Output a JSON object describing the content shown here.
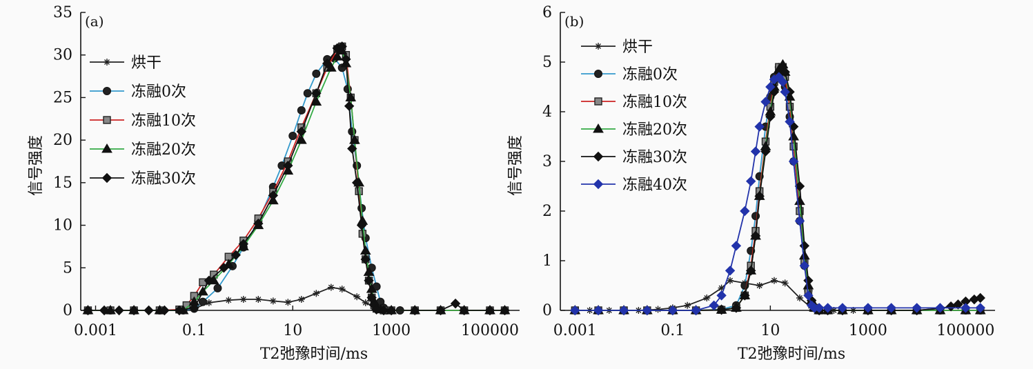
{
  "chart_data": [
    {
      "type": "line",
      "panel_label": "(a)",
      "xlabel": "T2弛豫时间/ms",
      "ylabel": "信号强度",
      "xscale": "log",
      "xlim": [
        0.0005,
        400000
      ],
      "ylim": [
        0,
        35
      ],
      "x_ticks": [
        0.001,
        0.1,
        10,
        1000,
        100000
      ],
      "x_tick_labels": [
        "0.001",
        "0.1",
        "10",
        "1000",
        "100000"
      ],
      "y_ticks": [
        0,
        5,
        10,
        15,
        20,
        25,
        30,
        35
      ],
      "y_tick_labels": [
        "0",
        "5",
        "10",
        "15",
        "20",
        "25",
        "30",
        "35"
      ],
      "legend_position": "top-left",
      "series": [
        {
          "name": "烘干",
          "color": "#222222",
          "marker": "star",
          "x": [
            0.0007,
            0.0015,
            0.003,
            0.006,
            0.012,
            0.025,
            0.05,
            0.1,
            0.2,
            0.5,
            1,
            2,
            4,
            8,
            15,
            30,
            60,
            100,
            200,
            300,
            500,
            700,
            1000,
            3000,
            10000,
            30000,
            100000,
            200000
          ],
          "y": [
            0,
            0,
            0,
            0,
            0,
            0,
            0.05,
            0.2,
            0.9,
            1.2,
            1.3,
            1.3,
            1.1,
            0.95,
            1.3,
            2.0,
            2.7,
            2.5,
            1.6,
            0.9,
            0.3,
            0.1,
            0,
            0,
            0,
            0,
            0,
            0
          ]
        },
        {
          "name": "冻融0次",
          "color": "#3399cc",
          "marker": "circle",
          "x": [
            0.0007,
            0.002,
            0.006,
            0.02,
            0.06,
            0.1,
            0.15,
            0.3,
            0.6,
            1,
            2,
            4,
            6,
            10,
            15,
            20,
            30,
            50,
            70,
            100,
            130,
            160,
            200,
            250,
            300,
            400,
            500,
            600,
            700,
            800,
            1000,
            1500,
            3000,
            10000,
            30000,
            100000,
            200000
          ],
          "y": [
            0,
            0,
            0,
            0,
            0,
            0.2,
            1.0,
            2.6,
            5.2,
            7.4,
            10.5,
            14.5,
            17.0,
            20.5,
            23.5,
            25.5,
            27.8,
            29.5,
            29.6,
            28.5,
            26.0,
            21.0,
            17.0,
            12.0,
            8.5,
            5.0,
            2.8,
            1.0,
            0.3,
            0,
            0,
            0,
            0,
            0,
            0,
            0,
            0
          ]
        },
        {
          "name": "冻融10次",
          "color": "#cc2222",
          "marker": "square",
          "x": [
            0.0007,
            0.002,
            0.006,
            0.02,
            0.05,
            0.07,
            0.1,
            0.15,
            0.25,
            0.5,
            1,
            2,
            4,
            8,
            15,
            30,
            50,
            80,
            100,
            120,
            150,
            180,
            220,
            260,
            300,
            350,
            400,
            450,
            500,
            700,
            1000,
            3000,
            10000,
            30000,
            100000,
            200000
          ],
          "y": [
            0,
            0,
            0,
            0,
            0.1,
            0.6,
            1.7,
            3.3,
            4.2,
            6.3,
            8.2,
            10.8,
            13.9,
            17.5,
            21.5,
            25.5,
            28.5,
            30.7,
            31.0,
            30.0,
            25.0,
            20.0,
            14.0,
            9.0,
            6.0,
            3.5,
            1.5,
            0.6,
            0.2,
            0,
            0,
            0,
            0,
            0,
            0,
            0
          ]
        },
        {
          "name": "冻融20次",
          "color": "#33aa44",
          "marker": "triangle",
          "x": [
            0.0007,
            0.002,
            0.006,
            0.02,
            0.06,
            0.1,
            0.15,
            0.25,
            0.5,
            1,
            2,
            4,
            8,
            15,
            30,
            60,
            80,
            100,
            120,
            150,
            180,
            220,
            260,
            300,
            350,
            400,
            450,
            500,
            600,
            1000,
            3000,
            10000,
            30000,
            100000,
            200000
          ],
          "y": [
            0,
            0,
            0,
            0,
            0,
            1.0,
            2.2,
            3.5,
            5.4,
            7.5,
            10.0,
            12.9,
            16.4,
            20.0,
            24.5,
            28.5,
            29.8,
            30.5,
            29.0,
            25.0,
            20.0,
            15.0,
            10.5,
            7.0,
            4.5,
            2.5,
            1.0,
            0.4,
            0.1,
            0,
            0,
            0,
            0,
            0,
            0
          ]
        },
        {
          "name": "冻融30次",
          "color": "#111111",
          "marker": "diamond",
          "x": [
            0.0007,
            0.0015,
            0.003,
            0.006,
            0.012,
            0.025,
            0.05,
            0.1,
            0.2,
            0.4,
            0.7,
            1,
            2,
            4,
            8,
            15,
            30,
            50,
            80,
            100,
            120,
            140,
            160,
            200,
            250,
            300,
            350,
            400,
            450,
            500,
            700,
            1000,
            3000,
            10000,
            20000,
            30000,
            100000,
            200000
          ],
          "y": [
            0,
            0,
            0,
            0,
            0,
            0,
            0,
            0.3,
            3.5,
            5.0,
            6.5,
            7.8,
            10.2,
            13.5,
            17.0,
            21.0,
            25.5,
            29.0,
            30.8,
            31.0,
            29.5,
            24.0,
            19.0,
            15.0,
            10.0,
            6.0,
            3.5,
            1.5,
            0.6,
            0.1,
            0,
            0,
            0,
            0,
            0.8,
            0,
            0,
            0
          ]
        }
      ]
    },
    {
      "type": "line",
      "panel_label": "(b)",
      "xlabel": "T2弛豫时间/ms",
      "ylabel": "信号强度",
      "xscale": "log",
      "xlim": [
        0.0005,
        400000
      ],
      "ylim": [
        0,
        6
      ],
      "x_ticks": [
        0.001,
        0.1,
        10,
        1000,
        100000
      ],
      "x_tick_labels": [
        "0.001",
        "0.1",
        "10",
        "1000",
        "100000"
      ],
      "y_ticks": [
        0,
        1,
        2,
        3,
        4,
        5,
        6
      ],
      "y_tick_labels": [
        "0",
        "1",
        "2",
        "3",
        "4",
        "5",
        "6"
      ],
      "legend_position": "top-left",
      "series": [
        {
          "name": "烘干",
          "color": "#222222",
          "marker": "star",
          "x": [
            0.001,
            0.002,
            0.005,
            0.01,
            0.02,
            0.05,
            0.1,
            0.2,
            0.5,
            1,
            1.5,
            3,
            6,
            12,
            20,
            40,
            70,
            100,
            200,
            500,
            1000,
            3000,
            10000,
            30000,
            50000,
            70000,
            100000,
            150000,
            200000
          ],
          "y": [
            0,
            0,
            0,
            0,
            0,
            0.02,
            0.05,
            0.1,
            0.25,
            0.45,
            0.6,
            0.55,
            0.5,
            0.6,
            0.55,
            0.25,
            0.05,
            0,
            0,
            0,
            0,
            0,
            0,
            0.04,
            0.08,
            0.12,
            0.18,
            0.22,
            0.25
          ]
        },
        {
          "name": "冻融0次",
          "color": "#3399cc",
          "marker": "circle",
          "x": [
            0.001,
            0.003,
            0.01,
            0.03,
            0.1,
            0.3,
            1,
            2,
            3,
            4,
            5,
            6,
            8,
            10,
            12,
            15,
            18,
            20,
            25,
            30,
            40,
            50,
            60,
            70,
            80,
            100,
            150,
            300,
            1000,
            3000,
            10000,
            30000,
            100000,
            200000
          ],
          "y": [
            0,
            0,
            0,
            0,
            0,
            0,
            0.02,
            0.1,
            0.5,
            1.2,
            1.9,
            2.7,
            3.7,
            4.3,
            4.7,
            4.9,
            4.85,
            4.5,
            3.9,
            3.0,
            1.8,
            0.9,
            0.4,
            0.15,
            0.05,
            0,
            0,
            0,
            0,
            0,
            0,
            0,
            0,
            0
          ]
        },
        {
          "name": "冻融10次",
          "color": "#cc2222",
          "marker": "square",
          "x": [
            0.001,
            0.003,
            0.01,
            0.03,
            0.1,
            0.3,
            1,
            2,
            3,
            4,
            5,
            6,
            8,
            10,
            12,
            15,
            18,
            20,
            25,
            30,
            40,
            50,
            60,
            70,
            80,
            100,
            150,
            300,
            1000,
            3000,
            10000,
            30000,
            100000,
            200000
          ],
          "y": [
            0,
            0,
            0,
            0,
            0,
            0,
            0.01,
            0.05,
            0.3,
            0.9,
            1.6,
            2.4,
            3.4,
            4.1,
            4.6,
            4.9,
            4.9,
            4.7,
            4.1,
            3.3,
            2.0,
            1.0,
            0.4,
            0.15,
            0.05,
            0,
            0,
            0,
            0,
            0,
            0,
            0,
            0,
            0
          ]
        },
        {
          "name": "冻融20次",
          "color": "#33aa44",
          "marker": "triangle",
          "x": [
            0.001,
            0.003,
            0.01,
            0.03,
            0.1,
            0.3,
            1,
            2,
            3,
            4,
            5,
            6,
            8,
            10,
            12,
            15,
            18,
            20,
            25,
            30,
            40,
            50,
            60,
            70,
            80,
            100,
            150,
            300,
            1000,
            3000,
            10000,
            30000,
            100000,
            200000
          ],
          "y": [
            0,
            0,
            0,
            0,
            0,
            0,
            0.01,
            0.05,
            0.3,
            0.8,
            1.5,
            2.3,
            3.3,
            4.0,
            4.5,
            4.85,
            4.95,
            4.8,
            4.3,
            3.5,
            2.2,
            1.1,
            0.5,
            0.2,
            0.05,
            0,
            0,
            0,
            0,
            0,
            0,
            0,
            0,
            0
          ]
        },
        {
          "name": "冻融30次",
          "color": "#111111",
          "marker": "diamond",
          "x": [
            0.001,
            0.003,
            0.01,
            0.03,
            0.1,
            0.3,
            1,
            2,
            3,
            4,
            5,
            6,
            8,
            10,
            12,
            15,
            18,
            20,
            25,
            30,
            40,
            50,
            60,
            70,
            80,
            100,
            150,
            300,
            1000,
            3000,
            10000,
            30000,
            50000,
            70000,
            100000,
            150000,
            200000
          ],
          "y": [
            0,
            0,
            0,
            0,
            0,
            0,
            0.01,
            0.05,
            0.3,
            0.8,
            1.5,
            2.3,
            3.2,
            3.9,
            4.4,
            4.8,
            4.9,
            4.8,
            4.4,
            3.7,
            2.5,
            1.3,
            0.6,
            0.2,
            0.05,
            0,
            0,
            0,
            0,
            0,
            0,
            0.04,
            0.08,
            0.12,
            0.18,
            0.22,
            0.25
          ]
        },
        {
          "name": "冻融40次",
          "color": "#2233aa",
          "marker": "diamond",
          "x": [
            0.001,
            0.003,
            0.01,
            0.03,
            0.1,
            0.3,
            0.7,
            1,
            1.5,
            2,
            3,
            4,
            5,
            6,
            8,
            10,
            12,
            15,
            18,
            20,
            25,
            30,
            40,
            50,
            60,
            70,
            80,
            100,
            150,
            300,
            1000,
            3000,
            10000,
            30000,
            100000,
            200000
          ],
          "y": [
            0,
            0,
            0,
            0,
            0,
            0,
            0.1,
            0.3,
            0.8,
            1.3,
            2.0,
            2.6,
            3.2,
            3.7,
            4.2,
            4.5,
            4.65,
            4.7,
            4.6,
            4.4,
            3.8,
            3.0,
            1.8,
            0.9,
            0.3,
            0.1,
            0.05,
            0.05,
            0.05,
            0.05,
            0.05,
            0.05,
            0.05,
            0.05,
            0.05,
            0.05
          ]
        }
      ]
    }
  ]
}
